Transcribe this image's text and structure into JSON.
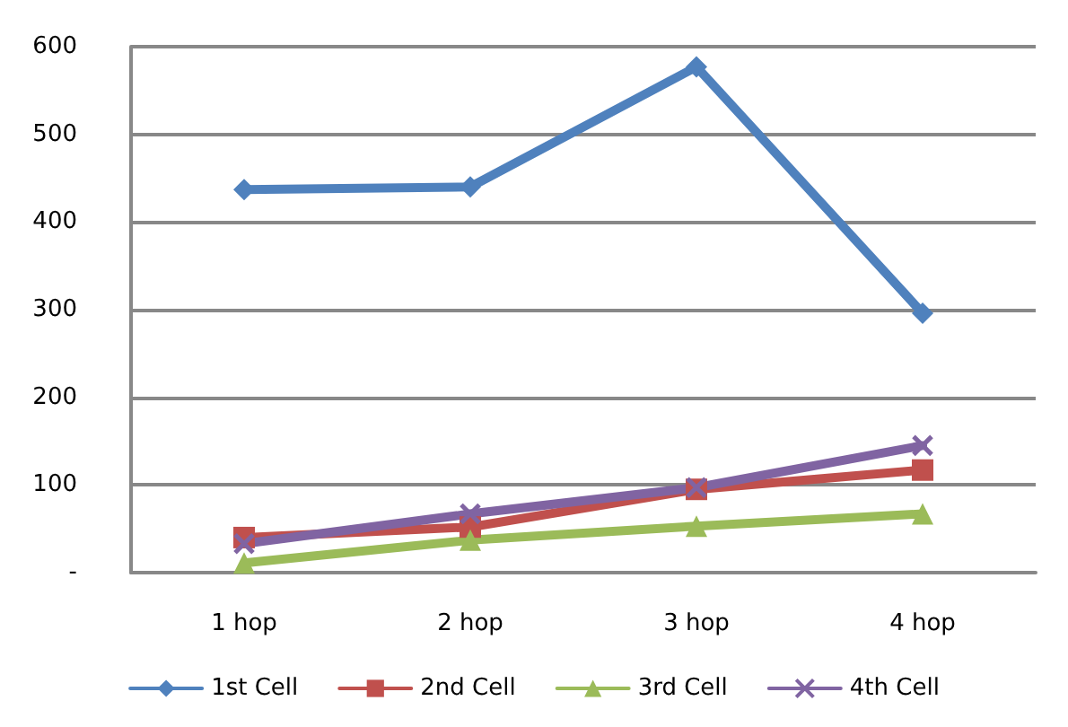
{
  "chart_data": {
    "type": "line",
    "categories": [
      "1 hop",
      "2 hop",
      "3 hop",
      "4 hop"
    ],
    "series": [
      {
        "name": "1st Cell",
        "color": "#4f81bd",
        "marker": "diamond",
        "values": [
          437,
          440,
          577,
          296
        ]
      },
      {
        "name": "2nd Cell",
        "color": "#c0504d",
        "marker": "square",
        "values": [
          40,
          52,
          95,
          117
        ]
      },
      {
        "name": "3rd Cell",
        "color": "#9bbb59",
        "marker": "triangle",
        "values": [
          11,
          37,
          53,
          67
        ]
      },
      {
        "name": "4th Cell",
        "color": "#8064a2",
        "marker": "cross",
        "values": [
          33,
          67,
          97,
          145
        ]
      }
    ],
    "ylim": [
      0,
      600
    ],
    "yticks": [
      {
        "value": 0,
        "label": "-"
      },
      100,
      200,
      300,
      400,
      500,
      600
    ],
    "grid": "y",
    "legend": "bottom"
  }
}
